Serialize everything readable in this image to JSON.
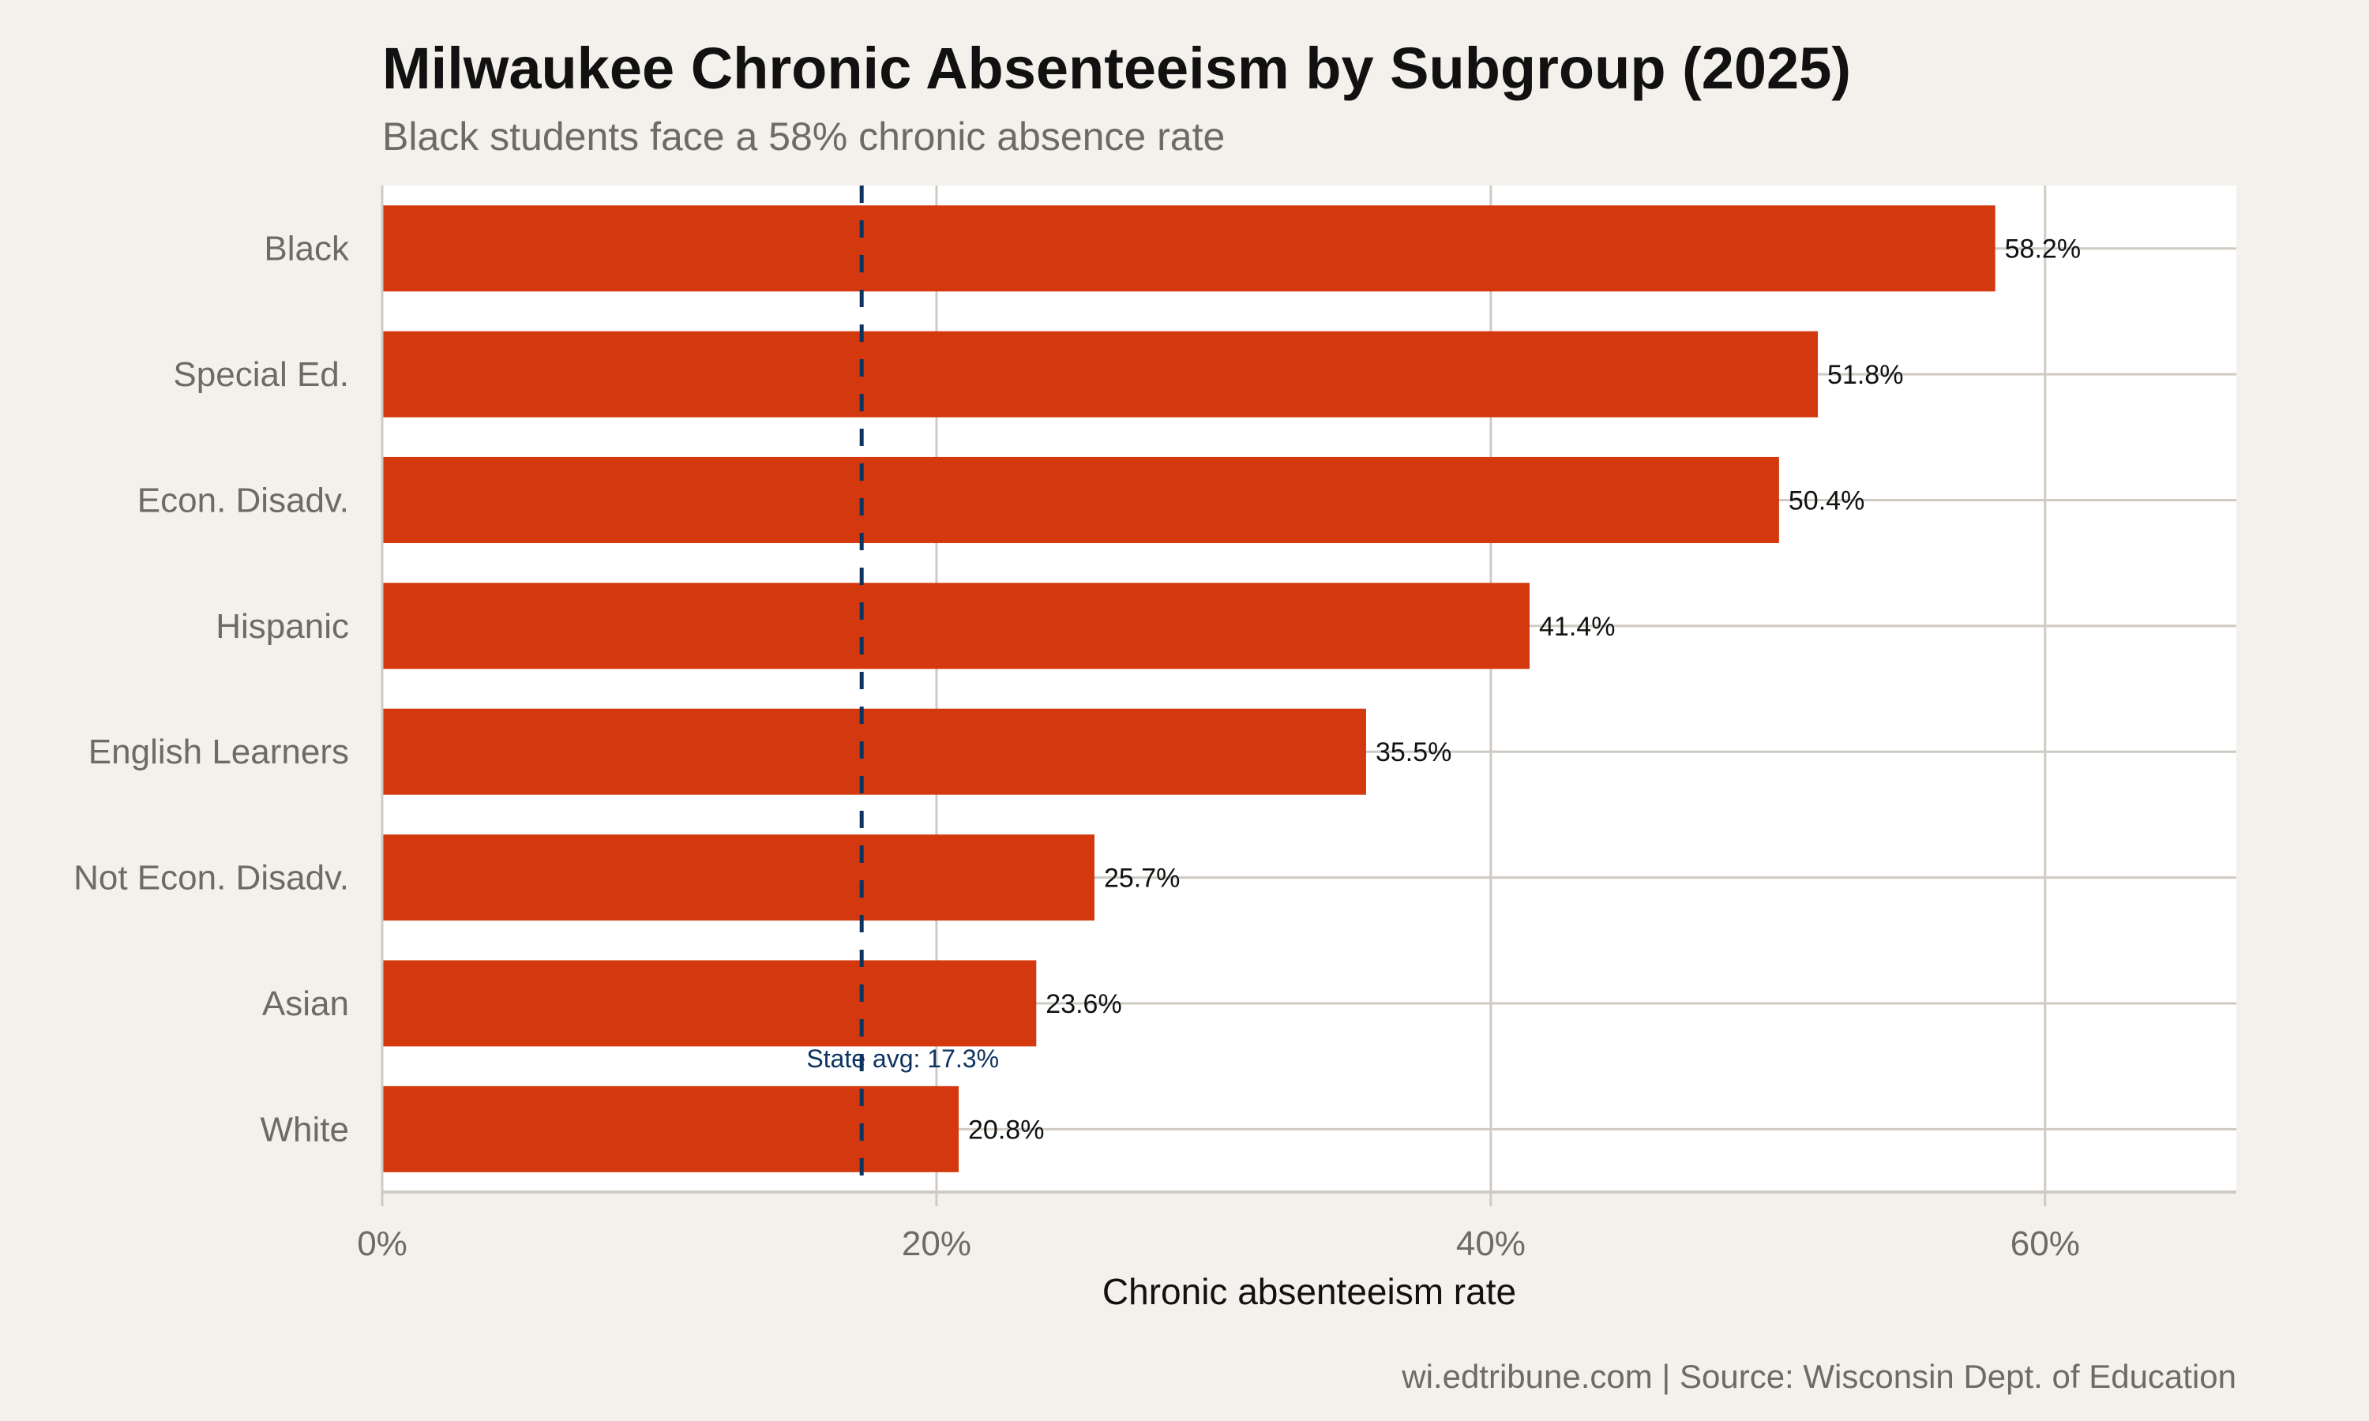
{
  "chart_data": {
    "type": "bar",
    "orientation": "horizontal",
    "title": "Milwaukee Chronic Absenteeism by Subgroup (2025)",
    "subtitle": "Black students face a 58% chronic absence rate",
    "xlabel": "Chronic absenteeism rate",
    "ylabel": "",
    "caption": "wi.edtribune.com | Source: Wisconsin Dept. of Education",
    "categories": [
      "Black",
      "Special Ed.",
      "Econ. Disadv.",
      "Hispanic",
      "English Learners",
      "Not Econ. Disadv.",
      "Asian",
      "White"
    ],
    "values": [
      58.2,
      51.8,
      50.4,
      41.4,
      35.5,
      25.7,
      23.6,
      20.8
    ],
    "data_labels": [
      "58.2%",
      "51.8%",
      "50.4%",
      "41.4%",
      "35.5%",
      "25.7%",
      "23.6%",
      "20.8%"
    ],
    "xlim": [
      0,
      66.9
    ],
    "x_ticks": [
      0,
      20,
      40,
      60
    ],
    "x_tick_labels": [
      "0%",
      "20%",
      "40%",
      "60%"
    ],
    "reference_line": {
      "value": 17.3,
      "label": "State avg: 17.3%",
      "style": "dashed",
      "color": "#0d3461"
    },
    "grid": true,
    "legend": "none",
    "colors": {
      "bar": "#d4380e",
      "background": "#f4f1ec",
      "panel": "#ffffff",
      "grid": "#cfcac3"
    }
  }
}
